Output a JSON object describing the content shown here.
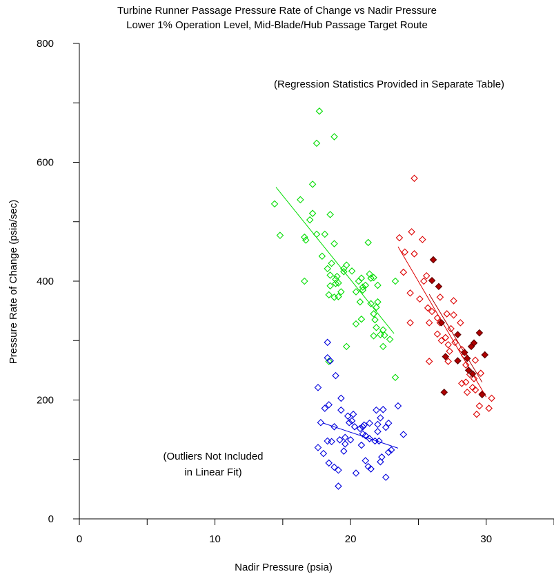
{
  "chart_data": {
    "type": "scatter",
    "title": "Turbine Runner Passage Pressure Rate of Change vs Nadir Pressure",
    "subtitle": "Lower 1% Operation Level, Mid-Blade/Hub Passage Target Route",
    "xlabel": "Nadir Pressure (psia)",
    "ylabel": "Pressure Rate of Change (psia/sec)",
    "xlim": [
      0,
      35
    ],
    "ylim": [
      0,
      800
    ],
    "xticks": [
      0,
      10,
      20,
      30
    ],
    "yticks": [
      0,
      200,
      400,
      600,
      800
    ],
    "grid": false,
    "legend": "none",
    "annotations": [
      "(Regression Statistics Provided in Separate Table)",
      "(Outliers Not Included",
      "in Linear Fit)"
    ],
    "series": [
      {
        "color": "#00dd00",
        "marker": "open-diamond",
        "points": [
          [
            17.7,
            686
          ],
          [
            18.8,
            643
          ],
          [
            17.5,
            632
          ],
          [
            17.2,
            563
          ],
          [
            14.4,
            530
          ],
          [
            16.3,
            537
          ],
          [
            17.2,
            514
          ],
          [
            17.0,
            503
          ],
          [
            18.5,
            512
          ],
          [
            14.8,
            477
          ],
          [
            16.6,
            474
          ],
          [
            16.7,
            469
          ],
          [
            17.5,
            479
          ],
          [
            18.1,
            479
          ],
          [
            18.8,
            463
          ],
          [
            21.3,
            465
          ],
          [
            17.9,
            442
          ],
          [
            18.6,
            430
          ],
          [
            18.3,
            421
          ],
          [
            19.5,
            421
          ],
          [
            19.7,
            427
          ],
          [
            19.5,
            416
          ],
          [
            18.5,
            410
          ],
          [
            19.0,
            408
          ],
          [
            20.1,
            417
          ],
          [
            18.9,
            403
          ],
          [
            18.5,
            392
          ],
          [
            18.9,
            396
          ],
          [
            19.1,
            397
          ],
          [
            19.3,
            382
          ],
          [
            18.8,
            373
          ],
          [
            19.1,
            374
          ],
          [
            18.4,
            377
          ],
          [
            16.6,
            400
          ],
          [
            20.6,
            400
          ],
          [
            20.8,
            405
          ],
          [
            21.5,
            405
          ],
          [
            21.4,
            412
          ],
          [
            21.7,
            406
          ],
          [
            20.9,
            390
          ],
          [
            21.1,
            393
          ],
          [
            20.4,
            382
          ],
          [
            20.9,
            385
          ],
          [
            22.0,
            393
          ],
          [
            20.7,
            365
          ],
          [
            21.5,
            362
          ],
          [
            21.9,
            356
          ],
          [
            22.0,
            365
          ],
          [
            21.7,
            345
          ],
          [
            21.8,
            335
          ],
          [
            20.8,
            336
          ],
          [
            21.9,
            322
          ],
          [
            22.4,
            318
          ],
          [
            22.2,
            310
          ],
          [
            22.5,
            309
          ],
          [
            21.7,
            308
          ],
          [
            20.4,
            328
          ],
          [
            22.9,
            302
          ],
          [
            22.4,
            290
          ],
          [
            19.7,
            290
          ],
          [
            23.3,
            400
          ],
          [
            23.3,
            238
          ],
          [
            18.4,
            265
          ]
        ],
        "fit": [
          [
            14.5,
            558
          ],
          [
            23.2,
            312
          ]
        ]
      },
      {
        "color": "#0000dd",
        "marker": "open-diamond",
        "points": [
          [
            18.3,
            297
          ],
          [
            18.3,
            271
          ],
          [
            18.5,
            266
          ],
          [
            18.9,
            241
          ],
          [
            17.6,
            221
          ],
          [
            18.4,
            192
          ],
          [
            18.1,
            186
          ],
          [
            19.3,
            203
          ],
          [
            17.8,
            162
          ],
          [
            18.8,
            155
          ],
          [
            18.6,
            130
          ],
          [
            18.3,
            131
          ],
          [
            17.6,
            120
          ],
          [
            18.0,
            110
          ],
          [
            18.4,
            94
          ],
          [
            18.8,
            87
          ],
          [
            19.1,
            82
          ],
          [
            19.1,
            55
          ],
          [
            19.6,
            126
          ],
          [
            19.2,
            133
          ],
          [
            19.6,
            137
          ],
          [
            19.8,
            173
          ],
          [
            19.3,
            183
          ],
          [
            20.1,
            165
          ],
          [
            20.2,
            176
          ],
          [
            19.9,
            162
          ],
          [
            20.3,
            155
          ],
          [
            20.7,
            152
          ],
          [
            20.9,
            155
          ],
          [
            21.0,
            158
          ],
          [
            20.9,
            143
          ],
          [
            21.1,
            140
          ],
          [
            21.8,
            131
          ],
          [
            21.4,
            135
          ],
          [
            22.1,
            131
          ],
          [
            22.0,
            147
          ],
          [
            21.4,
            161
          ],
          [
            21.9,
            183
          ],
          [
            22.2,
            170
          ],
          [
            22.4,
            184
          ],
          [
            22.0,
            159
          ],
          [
            22.6,
            154
          ],
          [
            22.8,
            161
          ],
          [
            23.0,
            116
          ],
          [
            22.3,
            104
          ],
          [
            22.8,
            112
          ],
          [
            21.1,
            98
          ],
          [
            21.3,
            88
          ],
          [
            22.2,
            96
          ],
          [
            21.5,
            84
          ],
          [
            22.6,
            70
          ],
          [
            20.4,
            77
          ],
          [
            23.5,
            190
          ],
          [
            23.9,
            142
          ],
          [
            19.5,
            114
          ],
          [
            20.0,
            133
          ],
          [
            20.8,
            124
          ]
        ],
        "fit": [
          [
            18.0,
            161
          ],
          [
            23.5,
            119
          ]
        ]
      },
      {
        "color": "#dd0000",
        "marker": "open-diamond",
        "points": [
          [
            24.7,
            573
          ],
          [
            23.6,
            473
          ],
          [
            24.5,
            483
          ],
          [
            25.3,
            470
          ],
          [
            24.7,
            446
          ],
          [
            23.9,
            415
          ],
          [
            25.6,
            409
          ],
          [
            25.4,
            400
          ],
          [
            24.4,
            380
          ],
          [
            25.1,
            370
          ],
          [
            25.7,
            355
          ],
          [
            26.0,
            349
          ],
          [
            26.4,
            338
          ],
          [
            25.8,
            330
          ],
          [
            26.6,
            330
          ],
          [
            27.1,
            345
          ],
          [
            27.4,
            320
          ],
          [
            27.6,
            367
          ],
          [
            27.6,
            343
          ],
          [
            28.1,
            330
          ],
          [
            26.7,
            300
          ],
          [
            27.2,
            293
          ],
          [
            27.7,
            297
          ],
          [
            28.2,
            285
          ],
          [
            28.4,
            275
          ],
          [
            27.2,
            265
          ],
          [
            28.5,
            259
          ],
          [
            29.2,
            267
          ],
          [
            28.8,
            243
          ],
          [
            29.6,
            245
          ],
          [
            29.1,
            236
          ],
          [
            28.2,
            228
          ],
          [
            29.2,
            217
          ],
          [
            29.7,
            210
          ],
          [
            29.3,
            176
          ],
          [
            29.5,
            190
          ],
          [
            30.2,
            186
          ],
          [
            30.4,
            203
          ],
          [
            24.4,
            330
          ],
          [
            25.8,
            265
          ],
          [
            28.5,
            230
          ],
          [
            29.0,
            221
          ],
          [
            26.6,
            373
          ],
          [
            27.0,
            305
          ],
          [
            27.3,
            282
          ],
          [
            26.4,
            311
          ],
          [
            28.6,
            213
          ],
          [
            24.0,
            449
          ]
        ],
        "fit": [
          [
            23.5,
            458
          ],
          [
            30.0,
            205
          ]
        ]
      },
      {
        "color": "#b00000",
        "marker": "filled-diamond",
        "points": [
          [
            26.1,
            436
          ],
          [
            26.5,
            391
          ],
          [
            26.7,
            330
          ],
          [
            27.9,
            310
          ],
          [
            28.4,
            280
          ],
          [
            28.6,
            270
          ],
          [
            28.9,
            290
          ],
          [
            29.1,
            296
          ],
          [
            29.5,
            313
          ],
          [
            29.9,
            276
          ],
          [
            28.7,
            250
          ],
          [
            29.0,
            244
          ],
          [
            29.7,
            209
          ],
          [
            26.9,
            213
          ],
          [
            27.0,
            273
          ],
          [
            26.0,
            401
          ],
          [
            27.9,
            266
          ]
        ],
        "fit": [
          [
            25.8,
            378
          ],
          [
            29.7,
            230
          ]
        ]
      }
    ]
  }
}
